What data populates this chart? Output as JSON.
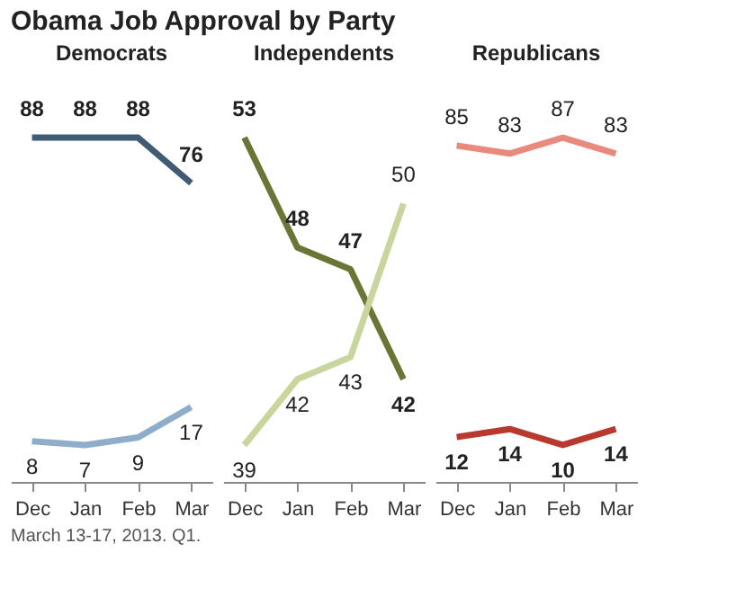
{
  "chart_data": [
    {
      "type": "line",
      "title": "Obama Job Approval by Party",
      "subtitle": "Democrats",
      "categories": [
        "Dec",
        "Jan",
        "Feb",
        "Mar"
      ],
      "data_labels": true,
      "grid": false,
      "marker": "none",
      "line_style": "solid",
      "tick_labels": "x",
      "series": [
        {
          "color": "#3f5c74",
          "values": [
            88,
            88,
            88,
            76
          ]
        },
        {
          "color": "#8eadc8",
          "values": [
            8,
            7,
            9,
            17
          ]
        }
      ]
    },
    {
      "type": "line",
      "subtitle": "Independents",
      "categories": [
        "Dec",
        "Jan",
        "Feb",
        "Mar"
      ],
      "data_labels": true,
      "grid": false,
      "marker": "none",
      "line_style": "solid",
      "tick_labels": "x",
      "series": [
        {
          "color": "#6b7536",
          "values": [
            53,
            48,
            47,
            42
          ]
        },
        {
          "color": "#c8d59c",
          "values": [
            39,
            42,
            43,
            50
          ]
        }
      ]
    },
    {
      "type": "line",
      "subtitle": "Republicans",
      "categories": [
        "Dec",
        "Jan",
        "Feb",
        "Mar"
      ],
      "data_labels": true,
      "grid": false,
      "marker": "none",
      "line_style": "solid",
      "tick_labels": "x",
      "annotations": [
        "March 13-17, 2013. Q1."
      ],
      "series": [
        {
          "color": "#b83a2e",
          "values": [
            12,
            14,
            10,
            14
          ]
        },
        {
          "color": "#e98a7e",
          "values": [
            85,
            83,
            87,
            83
          ]
        }
      ]
    }
  ]
}
